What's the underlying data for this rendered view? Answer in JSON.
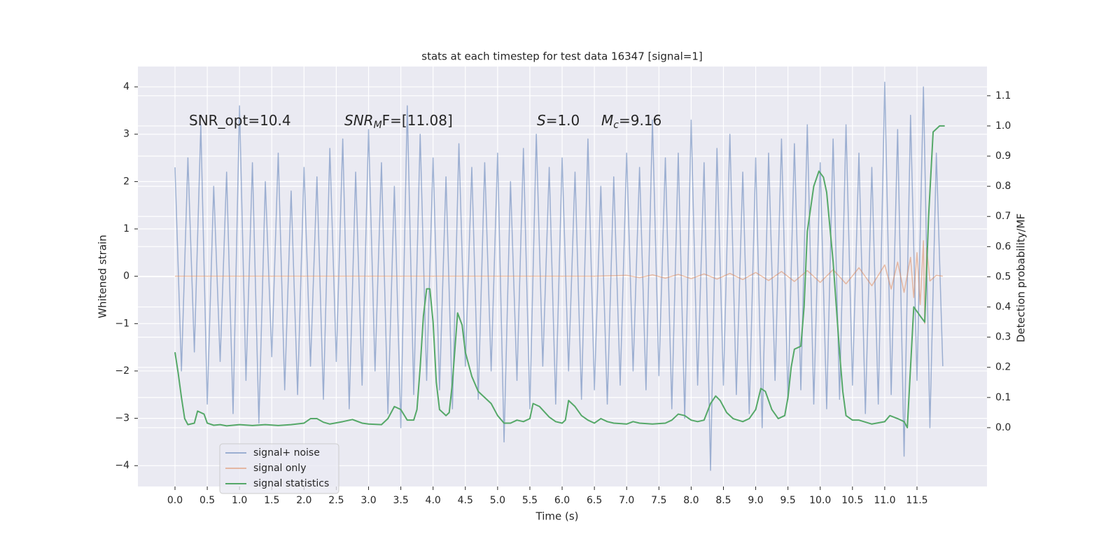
{
  "chart_data": {
    "type": "line",
    "title": "stats at each timestep for test data 16347 [signal=1]",
    "xlabel": "Time (s)",
    "ylabel": "Whitened strain",
    "y2label": "Detection probability/MF",
    "grid": true,
    "legend": "lower left",
    "xlim": [
      -0.575,
      12.585
    ],
    "ylim": [
      -4.44,
      4.43
    ],
    "y2lim": [
      -0.195,
      1.197
    ],
    "xticks": [
      {
        "value": 0,
        "label": "0.0"
      },
      {
        "value": 0.5,
        "label": "0.5"
      },
      {
        "value": 1,
        "label": "1.0"
      },
      {
        "value": 1.5,
        "label": "1.5"
      },
      {
        "value": 2,
        "label": "2.0"
      },
      {
        "value": 2.5,
        "label": "2.5"
      },
      {
        "value": 3,
        "label": "3.0"
      },
      {
        "value": 3.5,
        "label": "3.5"
      },
      {
        "value": 4,
        "label": "4.0"
      },
      {
        "value": 4.5,
        "label": "4.5"
      },
      {
        "value": 5,
        "label": "5.0"
      },
      {
        "value": 5.5,
        "label": "5.5"
      },
      {
        "value": 6,
        "label": "6.0"
      },
      {
        "value": 6.5,
        "label": "6.5"
      },
      {
        "value": 7,
        "label": "7.0"
      },
      {
        "value": 7.5,
        "label": "7.5"
      },
      {
        "value": 8,
        "label": "8.0"
      },
      {
        "value": 8.5,
        "label": "8.5"
      },
      {
        "value": 9,
        "label": "9.0"
      },
      {
        "value": 9.5,
        "label": "9.5"
      },
      {
        "value": 10,
        "label": "10.0"
      },
      {
        "value": 10.5,
        "label": "10.5"
      },
      {
        "value": 11,
        "label": "11.0"
      },
      {
        "value": 11.5,
        "label": "11.5"
      }
    ],
    "yticks": [
      {
        "value": -4,
        "label": "−4"
      },
      {
        "value": -3,
        "label": "−3"
      },
      {
        "value": -2,
        "label": "−2"
      },
      {
        "value": -1,
        "label": "−1"
      },
      0,
      1,
      2,
      3,
      4
    ],
    "y2ticks": [
      {
        "value": 0,
        "label": "0.0"
      },
      {
        "value": 0.1,
        "label": "0.1"
      },
      {
        "value": 0.2,
        "label": "0.2"
      },
      {
        "value": 0.3,
        "label": "0.3"
      },
      {
        "value": 0.4,
        "label": "0.4"
      },
      {
        "value": 0.5,
        "label": "0.5"
      },
      {
        "value": 0.6,
        "label": "0.6"
      },
      {
        "value": 0.7,
        "label": "0.7"
      },
      {
        "value": 0.8,
        "label": "0.8"
      },
      {
        "value": 0.9,
        "label": "0.9"
      },
      {
        "value": 1.0,
        "label": "1.0"
      },
      {
        "value": 1.1,
        "label": "1.1"
      }
    ],
    "annotations": [
      {
        "parts": [
          {
            "text": "SNR_opt=10.4"
          }
        ]
      },
      {
        "parts": [
          {
            "text": "SNR",
            "style": "italic"
          },
          {
            "text": "M",
            "style": "sub"
          },
          {
            "text": "F=[11.08]"
          }
        ]
      },
      {
        "parts": [
          {
            "text": "S",
            "style": "italic"
          },
          {
            "text": "=1.0"
          }
        ]
      },
      {
        "parts": [
          {
            "text": "M",
            "style": "italic"
          },
          {
            "text": "c",
            "style": "sub"
          },
          {
            "text": "=9.16"
          }
        ]
      }
    ],
    "series": [
      {
        "name": "signal+ noise",
        "color": "#4c72b0",
        "opacity": 0.5,
        "x": [
          0,
          0.1,
          0.2,
          0.3,
          0.4,
          0.5,
          0.6,
          0.7,
          0.8,
          0.9,
          1,
          1.1,
          1.2,
          1.3,
          1.4,
          1.5,
          1.6,
          1.7,
          1.8,
          1.9,
          2,
          2.1,
          2.2,
          2.3,
          2.4,
          2.5,
          2.6,
          2.7,
          2.8,
          2.9,
          3,
          3.1,
          3.2,
          3.3,
          3.4,
          3.5,
          3.6,
          3.7,
          3.8,
          3.9,
          4,
          4.1,
          4.2,
          4.3,
          4.4,
          4.5,
          4.6,
          4.7,
          4.8,
          4.9,
          5,
          5.1,
          5.2,
          5.3,
          5.4,
          5.5,
          5.6,
          5.7,
          5.8,
          5.9,
          6,
          6.1,
          6.2,
          6.3,
          6.4,
          6.5,
          6.6,
          6.7,
          6.8,
          6.9,
          7,
          7.1,
          7.2,
          7.3,
          7.4,
          7.5,
          7.6,
          7.7,
          7.8,
          7.9,
          8,
          8.1,
          8.2,
          8.3,
          8.4,
          8.5,
          8.6,
          8.7,
          8.8,
          8.9,
          9,
          9.1,
          9.2,
          9.3,
          9.4,
          9.5,
          9.6,
          9.7,
          9.8,
          9.9,
          10,
          10.1,
          10.2,
          10.3,
          10.4,
          10.5,
          10.6,
          10.7,
          10.8,
          10.9,
          11,
          11.1,
          11.2,
          11.3,
          11.4,
          11.5,
          11.6,
          11.7,
          11.8,
          11.9
        ],
        "values": [
          2.3,
          -2.0,
          2.5,
          -1.6,
          3.2,
          -2.7,
          1.9,
          -1.8,
          2.2,
          -2.9,
          3.6,
          -2.2,
          2.4,
          -3.1,
          2.0,
          -1.7,
          2.6,
          -2.4,
          1.8,
          -2.5,
          2.3,
          -1.9,
          2.1,
          -2.6,
          2.7,
          -1.8,
          2.9,
          -2.8,
          2.2,
          -2.3,
          3.1,
          -2.0,
          2.4,
          -2.9,
          1.9,
          -3.2,
          3.6,
          -2.5,
          3.0,
          -2.2,
          2.5,
          -2.4,
          2.1,
          -2.8,
          2.8,
          -1.9,
          2.3,
          -2.6,
          2.4,
          -2.0,
          2.6,
          -3.5,
          2.0,
          -2.2,
          2.7,
          -2.8,
          3.0,
          -1.9,
          2.3,
          -2.7,
          2.5,
          -2.0,
          2.2,
          -2.6,
          2.9,
          -2.4,
          1.9,
          -2.7,
          2.1,
          -2.3,
          2.6,
          -2.0,
          2.3,
          -2.4,
          3.3,
          -2.1,
          2.5,
          -2.8,
          2.6,
          -3.0,
          3.3,
          -2.3,
          2.4,
          -4.1,
          2.7,
          -2.3,
          3.0,
          -2.5,
          2.2,
          -2.9,
          2.5,
          -3.2,
          2.6,
          -2.2,
          2.9,
          -2.6,
          2.8,
          -2.4,
          3.2,
          -2.7,
          2.4,
          -2.8,
          2.9,
          -2.6,
          3.2,
          -2.3,
          2.6,
          -2.9,
          2.3,
          -2.7,
          4.1,
          -2.5,
          3.1,
          -3.8,
          3.4,
          -2.2,
          4.0,
          -3.2,
          2.6,
          -1.9
        ]
      },
      {
        "name": "signal only",
        "color": "#dd8452",
        "opacity": 0.5,
        "x": [
          0,
          6.5,
          7.0,
          7.2,
          7.4,
          7.6,
          7.8,
          8.0,
          8.2,
          8.4,
          8.6,
          8.8,
          9.0,
          9.2,
          9.4,
          9.6,
          9.8,
          10.0,
          10.2,
          10.4,
          10.6,
          10.8,
          11.0,
          11.1,
          11.2,
          11.3,
          11.4,
          11.45,
          11.5,
          11.55,
          11.6,
          11.62,
          11.65,
          11.7,
          11.8,
          11.9
        ],
        "values": [
          0,
          0,
          0.02,
          -0.03,
          0.03,
          -0.04,
          0.04,
          -0.05,
          0.05,
          -0.06,
          0.06,
          -0.07,
          0.08,
          -0.09,
          0.1,
          -0.11,
          0.12,
          -0.13,
          0.14,
          -0.16,
          0.18,
          -0.2,
          0.24,
          -0.27,
          0.3,
          -0.34,
          0.4,
          -0.45,
          0.5,
          -0.6,
          0.75,
          -1.0,
          0.6,
          -0.1,
          0.02,
          0
        ]
      },
      {
        "name": "signal statistics",
        "color": "#55a868",
        "opacity": 1,
        "axis": "y2",
        "x": [
          0,
          0.05,
          0.1,
          0.15,
          0.2,
          0.3,
          0.35,
          0.45,
          0.5,
          0.6,
          0.7,
          0.8,
          1.0,
          1.2,
          1.4,
          1.6,
          1.8,
          2.0,
          2.1,
          2.2,
          2.3,
          2.4,
          2.6,
          2.75,
          2.9,
          3.0,
          3.2,
          3.3,
          3.4,
          3.5,
          3.6,
          3.7,
          3.75,
          3.8,
          3.85,
          3.9,
          3.95,
          4.0,
          4.05,
          4.1,
          4.2,
          4.25,
          4.3,
          4.38,
          4.45,
          4.5,
          4.6,
          4.7,
          4.8,
          4.9,
          5.0,
          5.1,
          5.2,
          5.3,
          5.4,
          5.5,
          5.55,
          5.65,
          5.8,
          5.9,
          6.0,
          6.05,
          6.1,
          6.2,
          6.3,
          6.4,
          6.5,
          6.6,
          6.7,
          6.8,
          7.0,
          7.1,
          7.2,
          7.4,
          7.6,
          7.7,
          7.8,
          7.9,
          8.0,
          8.1,
          8.2,
          8.3,
          8.38,
          8.45,
          8.55,
          8.65,
          8.8,
          8.9,
          9.0,
          9.08,
          9.15,
          9.25,
          9.35,
          9.45,
          9.5,
          9.55,
          9.6,
          9.7,
          9.75,
          9.8,
          9.9,
          9.98,
          10.05,
          10.1,
          10.2,
          10.3,
          10.35,
          10.4,
          10.5,
          10.6,
          10.8,
          11.0,
          11.08,
          11.2,
          11.3,
          11.35,
          11.45,
          11.55,
          11.62,
          11.68,
          11.75,
          11.85,
          11.93
        ],
        "values": [
          0.25,
          0.18,
          0.1,
          0.03,
          0.01,
          0.015,
          0.055,
          0.045,
          0.015,
          0.008,
          0.01,
          0.006,
          0.01,
          0.007,
          0.01,
          0.007,
          0.01,
          0.015,
          0.03,
          0.03,
          0.018,
          0.012,
          0.02,
          0.027,
          0.015,
          0.012,
          0.01,
          0.03,
          0.07,
          0.06,
          0.025,
          0.025,
          0.06,
          0.2,
          0.37,
          0.46,
          0.46,
          0.35,
          0.15,
          0.06,
          0.04,
          0.05,
          0.15,
          0.38,
          0.34,
          0.25,
          0.17,
          0.12,
          0.1,
          0.08,
          0.04,
          0.015,
          0.015,
          0.025,
          0.02,
          0.03,
          0.08,
          0.07,
          0.035,
          0.02,
          0.015,
          0.025,
          0.09,
          0.07,
          0.04,
          0.025,
          0.015,
          0.03,
          0.02,
          0.015,
          0.012,
          0.02,
          0.015,
          0.012,
          0.015,
          0.025,
          0.045,
          0.04,
          0.025,
          0.02,
          0.025,
          0.08,
          0.105,
          0.09,
          0.05,
          0.03,
          0.02,
          0.03,
          0.06,
          0.13,
          0.12,
          0.06,
          0.03,
          0.04,
          0.1,
          0.2,
          0.26,
          0.27,
          0.4,
          0.65,
          0.8,
          0.85,
          0.83,
          0.78,
          0.55,
          0.25,
          0.12,
          0.04,
          0.025,
          0.025,
          0.012,
          0.02,
          0.04,
          0.03,
          0.02,
          0.0,
          0.4,
          0.37,
          0.35,
          0.7,
          0.98,
          1.0,
          1.0
        ]
      }
    ]
  }
}
